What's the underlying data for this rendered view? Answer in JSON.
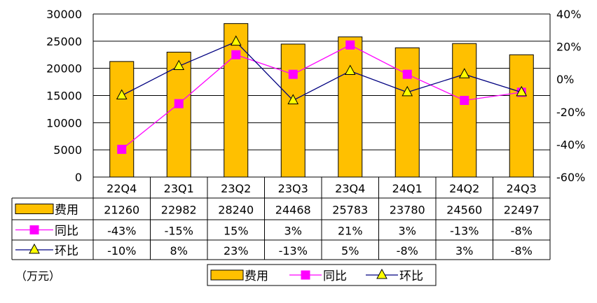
{
  "chart_data": {
    "type": "bar",
    "categories": [
      "22Q4",
      "23Q1",
      "23Q2",
      "23Q3",
      "23Q4",
      "24Q1",
      "24Q2",
      "24Q3"
    ],
    "series": [
      {
        "name": "费用",
        "type": "bar",
        "axis": "left",
        "color": "#ffc000",
        "values": [
          21260,
          22982,
          28240,
          24468,
          25783,
          23780,
          24560,
          22497
        ],
        "labels": [
          "21260",
          "22982",
          "28240",
          "24468",
          "25783",
          "23780",
          "24560",
          "22497"
        ]
      },
      {
        "name": "同比",
        "type": "line",
        "axis": "right",
        "color": "#ff00ff",
        "marker": "square",
        "values": [
          -43,
          -15,
          15,
          3,
          21,
          3,
          -13,
          -8
        ],
        "labels": [
          "-43%",
          "-15%",
          "15%",
          "3%",
          "21%",
          "3%",
          "-13%",
          "-8%"
        ]
      },
      {
        "name": "环比",
        "type": "line",
        "axis": "right",
        "color": "#000080",
        "marker": "triangle",
        "values": [
          -10,
          8,
          23,
          -13,
          5,
          -8,
          3,
          -8
        ],
        "labels": [
          "-10%",
          "8%",
          "23%",
          "-13%",
          "5%",
          "-8%",
          "3%",
          "-8%"
        ]
      }
    ],
    "y_left": {
      "ylim": [
        0,
        30000
      ],
      "ticks": [
        "0",
        "5000",
        "10000",
        "15000",
        "20000",
        "25000",
        "30000"
      ]
    },
    "y_right": {
      "ylim": [
        -60,
        40
      ],
      "ticks": [
        "-60%",
        "-40%",
        "-20%",
        "0%",
        "20%",
        "40%"
      ]
    },
    "unit_label": "（万元）",
    "grid": "horizontal",
    "legend_position": "bottom",
    "data_table": true
  }
}
